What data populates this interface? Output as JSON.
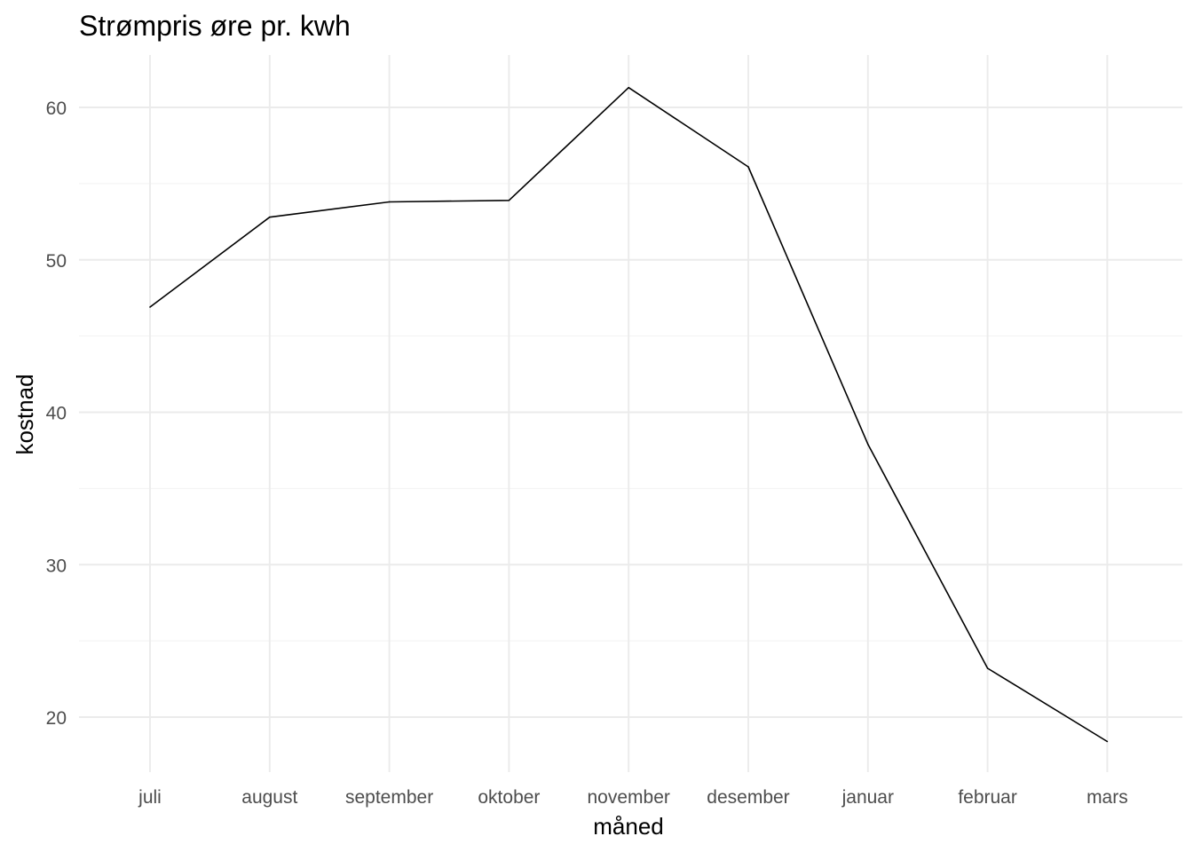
{
  "chart_data": {
    "type": "line",
    "title": "Strømpris øre pr. kwh",
    "xlabel": "måned",
    "ylabel": "kostnad",
    "categories": [
      "juli",
      "august",
      "september",
      "oktober",
      "november",
      "desember",
      "januar",
      "februar",
      "mars"
    ],
    "series": [
      {
        "values": [
          46.9,
          52.8,
          53.8,
          53.9,
          61.3,
          56.1,
          37.9,
          23.2,
          18.4
        ]
      }
    ],
    "y_ticks": [
      20,
      30,
      40,
      50,
      60
    ],
    "y_tick_labels": [
      "20",
      "30",
      "40",
      "50",
      "60"
    ],
    "ylim": [
      16.3,
      63.4
    ],
    "grid": true,
    "line_color": "#000000",
    "grid_color": "#ebebeb",
    "background": "#ffffff"
  }
}
